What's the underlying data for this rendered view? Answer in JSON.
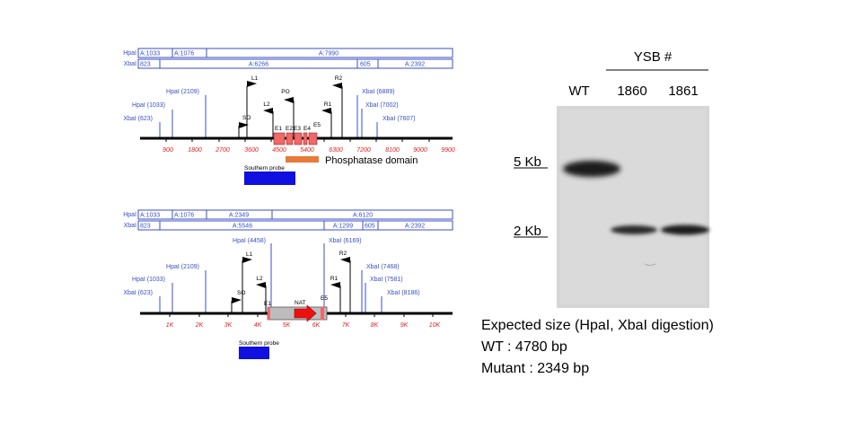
{
  "wt_map": {
    "hpal_segments": [
      "A:1033",
      "A:1076",
      "A:7990"
    ],
    "xbal_segments": [
      "823",
      "A:6266",
      "605",
      "A:2392"
    ],
    "row_labels": {
      "hpal": "HpaI",
      "xbal": "XbaI"
    },
    "sites": [
      "XbaI (623)",
      "HpaI (1033)",
      "HpaI (2109)",
      "XbaI (6889)",
      "XbaI (7002)",
      "XbaI (7607)"
    ],
    "markers": [
      "L1",
      "SO",
      "L2",
      "PO",
      "R2",
      "R1",
      "E1",
      "E2",
      "E3",
      "E4",
      "E5"
    ],
    "ticks": [
      "900",
      "1800",
      "2700",
      "3600",
      "4500",
      "5400",
      "6300",
      "7200",
      "8100",
      "9000",
      "9900"
    ],
    "probe_label": "Southern probe",
    "domain_label": "Phosphatase domain"
  },
  "mut_map": {
    "hpal_segments": [
      "A:1033",
      "A:1076",
      "A:2349",
      "A:6120"
    ],
    "xbal_segments": [
      "823",
      "A:5546",
      "A:1299",
      "605",
      "A:2392"
    ],
    "row_labels": {
      "hpal": "HpaI",
      "xbal": "XbaI"
    },
    "sites": [
      "XbaI (623)",
      "HpaI (1033)",
      "HpaI (2109)",
      "HpaI (4458)",
      "XbaI (6169)",
      "XbaI (7468)",
      "XbaI (7581)",
      "XbaI (8186)"
    ],
    "markers": [
      "L1",
      "SO",
      "L2",
      "E1",
      "NAT",
      "R2",
      "R1",
      "E5"
    ],
    "ticks": [
      "1K",
      "2K",
      "3K",
      "4K",
      "5K",
      "6K",
      "7K",
      "8K",
      "9K",
      "10K"
    ],
    "probe_label": "Southern probe"
  },
  "blot": {
    "group_label": "YSB #",
    "lanes": [
      "WT",
      "1860",
      "1861"
    ],
    "size_markers": [
      "5 Kb",
      "2 Kb"
    ]
  },
  "info": {
    "title": "Expected size (HpaI, XbaI digestion)",
    "wt_line": "WT : 4780 bp",
    "mutant_line": "Mutant : 2349 bp"
  },
  "colors": {
    "map_blue": "#3a4fc4",
    "tick_red": "#e02020",
    "exon_fill": "#f06868",
    "domain_orange": "#e87a3a",
    "probe_blue": "#1010e0",
    "nat_red": "#ee1010",
    "cassette_gray": "#bdbdbd"
  }
}
